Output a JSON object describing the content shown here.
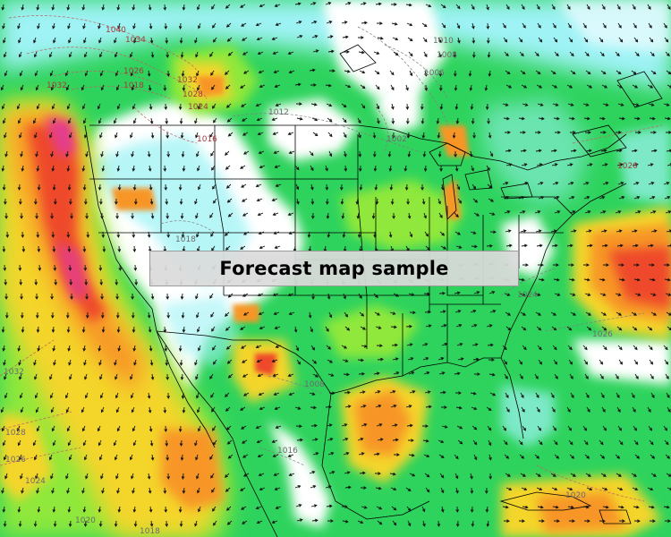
{
  "banner": {
    "text": "Forecast map sample"
  },
  "colors": {
    "land": "#ffffff",
    "boundary": "#000000",
    "isobar": "#c06060",
    "isobar_label": "#a33a3a",
    "wind_scale": [
      "#e8fbff",
      "#9ff3f5",
      "#34e8c4",
      "#2ed35d",
      "#8fe83a",
      "#f4d52b",
      "#f79628",
      "#ee4a2a",
      "#e43c8f"
    ]
  },
  "isobar_labels": [
    {
      "text": "1040",
      "color": "red"
    },
    {
      "text": "1034",
      "color": "red"
    },
    {
      "text": "1032",
      "color": "red"
    },
    {
      "text": "1026",
      "color": "red"
    },
    {
      "text": "1018",
      "color": "red"
    },
    {
      "text": "1032",
      "color": "red"
    },
    {
      "text": "1028",
      "color": "red"
    },
    {
      "text": "1024",
      "color": "red"
    },
    {
      "text": "1016",
      "color": "red"
    },
    {
      "text": "1012",
      "color": "gray"
    },
    {
      "text": "1010",
      "color": "gray"
    },
    {
      "text": "1008",
      "color": "gray"
    },
    {
      "text": "1006",
      "color": "gray"
    },
    {
      "text": "1002",
      "color": "gray"
    },
    {
      "text": "1020",
      "color": "red"
    },
    {
      "text": "1018",
      "color": "gray"
    },
    {
      "text": "1024",
      "color": "gray"
    },
    {
      "text": "1026",
      "color": "gray"
    },
    {
      "text": "1032",
      "color": "gray"
    },
    {
      "text": "1028",
      "color": "gray"
    },
    {
      "text": "1026",
      "color": "gray"
    },
    {
      "text": "1024",
      "color": "gray"
    },
    {
      "text": "1020",
      "color": "gray"
    },
    {
      "text": "1018",
      "color": "gray"
    },
    {
      "text": "1008",
      "color": "gray"
    },
    {
      "text": "1016",
      "color": "gray"
    },
    {
      "text": "1020",
      "color": "gray"
    }
  ]
}
